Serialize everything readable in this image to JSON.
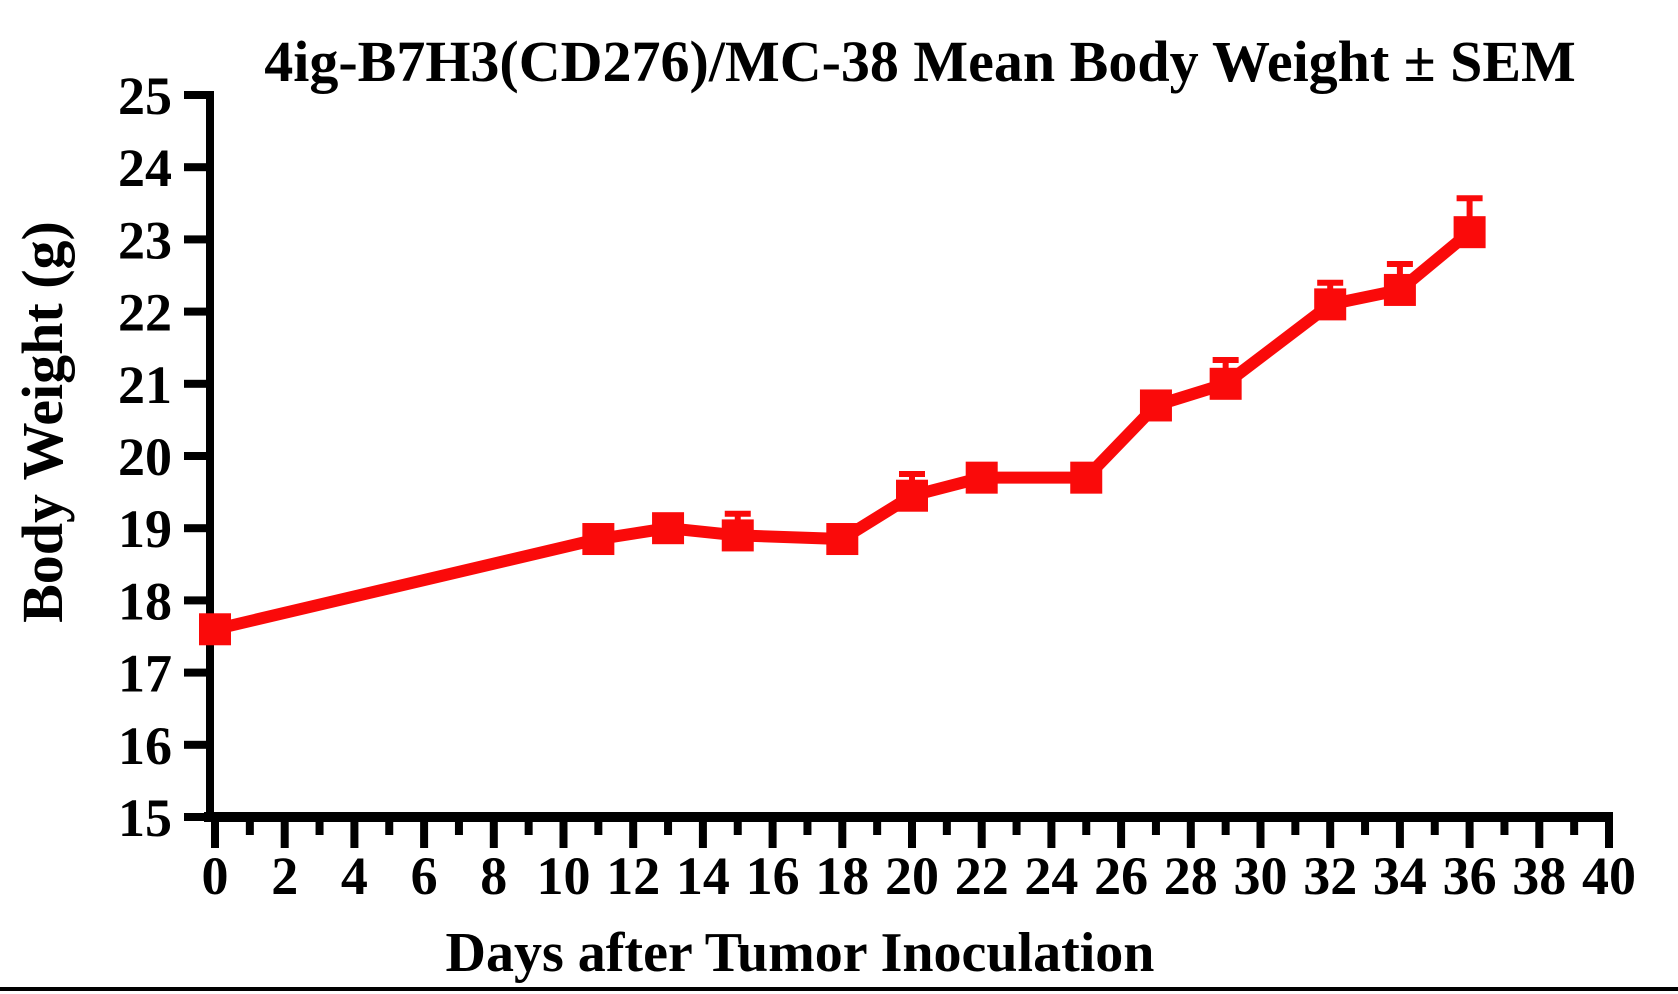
{
  "title": "4ig-B7H3(CD276)/MC-38 Mean Body Weight ± SEM",
  "colors": {
    "series": "#fa0a0a",
    "axis": "#000000",
    "background": "#ffffff"
  },
  "chart_data": {
    "type": "line",
    "title": "4ig-B7H3(CD276)/MC-38 Mean Body Weight ± SEM",
    "xlabel": "Days after Tumor Inoculation",
    "ylabel": "Body Weight (g)",
    "xlim": [
      0,
      40
    ],
    "ylim": [
      15,
      25
    ],
    "xticks_major": [
      0,
      2,
      4,
      6,
      8,
      10,
      12,
      14,
      16,
      18,
      20,
      22,
      24,
      26,
      28,
      30,
      32,
      34,
      36,
      38,
      40
    ],
    "xticks_minor": [
      1,
      3,
      5,
      7,
      9,
      11,
      13,
      15,
      17,
      19,
      21,
      23,
      25,
      27,
      29,
      31,
      33,
      35,
      37,
      39
    ],
    "yticks": [
      15,
      16,
      17,
      18,
      19,
      20,
      21,
      22,
      23,
      24,
      25
    ],
    "grid": false,
    "legend": null,
    "error_bars": "upper SEM, caps shown where larger than marker",
    "series": [
      {
        "name": "4ig-B7H3(CD276)/MC-38",
        "marker": "square",
        "color": "#fa0a0a",
        "x": [
          0,
          11,
          13,
          15,
          18,
          20,
          22,
          25,
          27,
          29,
          32,
          34,
          36
        ],
        "y": [
          17.6,
          18.85,
          19.0,
          18.9,
          18.85,
          19.45,
          19.7,
          19.7,
          20.7,
          21.0,
          22.1,
          22.3,
          23.1
        ],
        "sem": [
          0,
          0,
          0.1,
          0.3,
          0,
          0.3,
          0,
          0,
          0,
          0.33,
          0.3,
          0.36,
          0.47
        ]
      }
    ]
  }
}
